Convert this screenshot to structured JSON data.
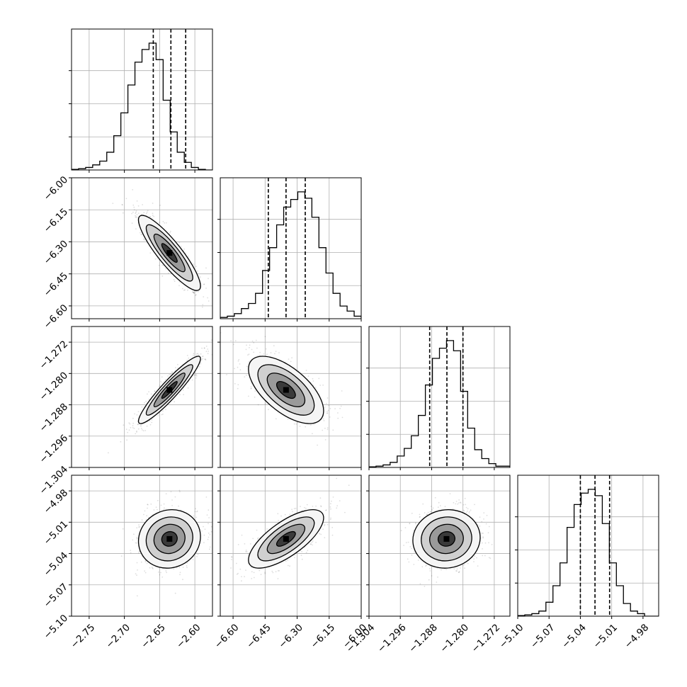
{
  "chart_data": {
    "type": "corner",
    "title": "",
    "grid": true,
    "variables": [
      {
        "range": [
          -2.775,
          -2.575
        ],
        "ticks": [
          -2.75,
          -2.7,
          -2.65,
          -2.6
        ],
        "tick_labels": [
          "−2.75",
          "−2.70",
          "−2.65",
          "−2.60"
        ],
        "quantiles": [
          -2.659,
          -2.634,
          -2.613
        ]
      },
      {
        "range": [
          -6.66,
          -6.0
        ],
        "ticks": [
          -6.6,
          -6.45,
          -6.3,
          -6.15,
          -6.0
        ],
        "tick_labels": [
          "−6.60",
          "−6.45",
          "−6.30",
          "−6.15",
          "−6.00"
        ],
        "quantiles": [
          -6.435,
          -6.352,
          -6.262
        ]
      },
      {
        "range": [
          -1.304,
          -1.268
        ],
        "ticks": [
          -1.304,
          -1.296,
          -1.288,
          -1.28,
          -1.272
        ],
        "tick_labels": [
          "−1.304",
          "−1.296",
          "−1.288",
          "−1.280",
          "−1.272"
        ],
        "quantiles": [
          -1.2885,
          -1.2841,
          -1.28
        ]
      },
      {
        "range": [
          -5.1,
          -4.965
        ],
        "ticks": [
          -5.1,
          -5.07,
          -5.04,
          -5.01,
          -4.98
        ],
        "tick_labels": [
          "−5.10",
          "−5.07",
          "−5.04",
          "−5.01",
          "−4.98"
        ],
        "quantiles": [
          -5.04,
          -5.026,
          -5.012
        ]
      }
    ],
    "histograms": [
      {
        "counts": [
          0.005,
          0.01,
          0.02,
          0.04,
          0.07,
          0.14,
          0.27,
          0.45,
          0.67,
          0.85,
          0.95,
          1.0,
          0.87,
          0.55,
          0.3,
          0.14,
          0.06,
          0.02,
          0.005,
          0.0
        ]
      },
      {
        "counts": [
          0.01,
          0.02,
          0.04,
          0.08,
          0.12,
          0.2,
          0.38,
          0.56,
          0.74,
          0.88,
          0.94,
          1.0,
          0.95,
          0.8,
          0.56,
          0.36,
          0.2,
          0.1,
          0.06,
          0.02
        ]
      },
      {
        "counts": [
          0.005,
          0.01,
          0.02,
          0.04,
          0.09,
          0.15,
          0.25,
          0.41,
          0.65,
          0.86,
          0.94,
          1.0,
          0.92,
          0.6,
          0.31,
          0.14,
          0.07,
          0.03,
          0.01,
          0.01
        ]
      },
      {
        "counts": [
          0.005,
          0.01,
          0.02,
          0.04,
          0.11,
          0.24,
          0.42,
          0.7,
          0.88,
          0.97,
          1.0,
          0.95,
          0.73,
          0.42,
          0.24,
          0.1,
          0.04,
          0.02,
          0.0,
          0.0
        ]
      }
    ],
    "pairs": [
      {
        "row": 1,
        "col": 0,
        "center": [
          -2.636,
          -6.352
        ],
        "sd": [
          0.022,
          0.088
        ],
        "corr": -0.88
      },
      {
        "row": 2,
        "col": 0,
        "center": [
          -2.636,
          -1.2842
        ],
        "sd": [
          0.022,
          0.0043
        ],
        "corr": 0.93
      },
      {
        "row": 2,
        "col": 1,
        "center": [
          -6.352,
          -1.2842
        ],
        "sd": [
          0.088,
          0.0043
        ],
        "corr": -0.62
      },
      {
        "row": 3,
        "col": 0,
        "center": [
          -2.636,
          -5.026
        ],
        "sd": [
          0.022,
          0.014
        ],
        "corr": 0.08
      },
      {
        "row": 3,
        "col": 1,
        "center": [
          -6.352,
          -5.026
        ],
        "sd": [
          0.088,
          0.014
        ],
        "corr": 0.72
      },
      {
        "row": 3,
        "col": 2,
        "center": [
          -1.2842,
          -5.026
        ],
        "sd": [
          0.0043,
          0.014
        ],
        "corr": 0.05
      }
    ]
  }
}
